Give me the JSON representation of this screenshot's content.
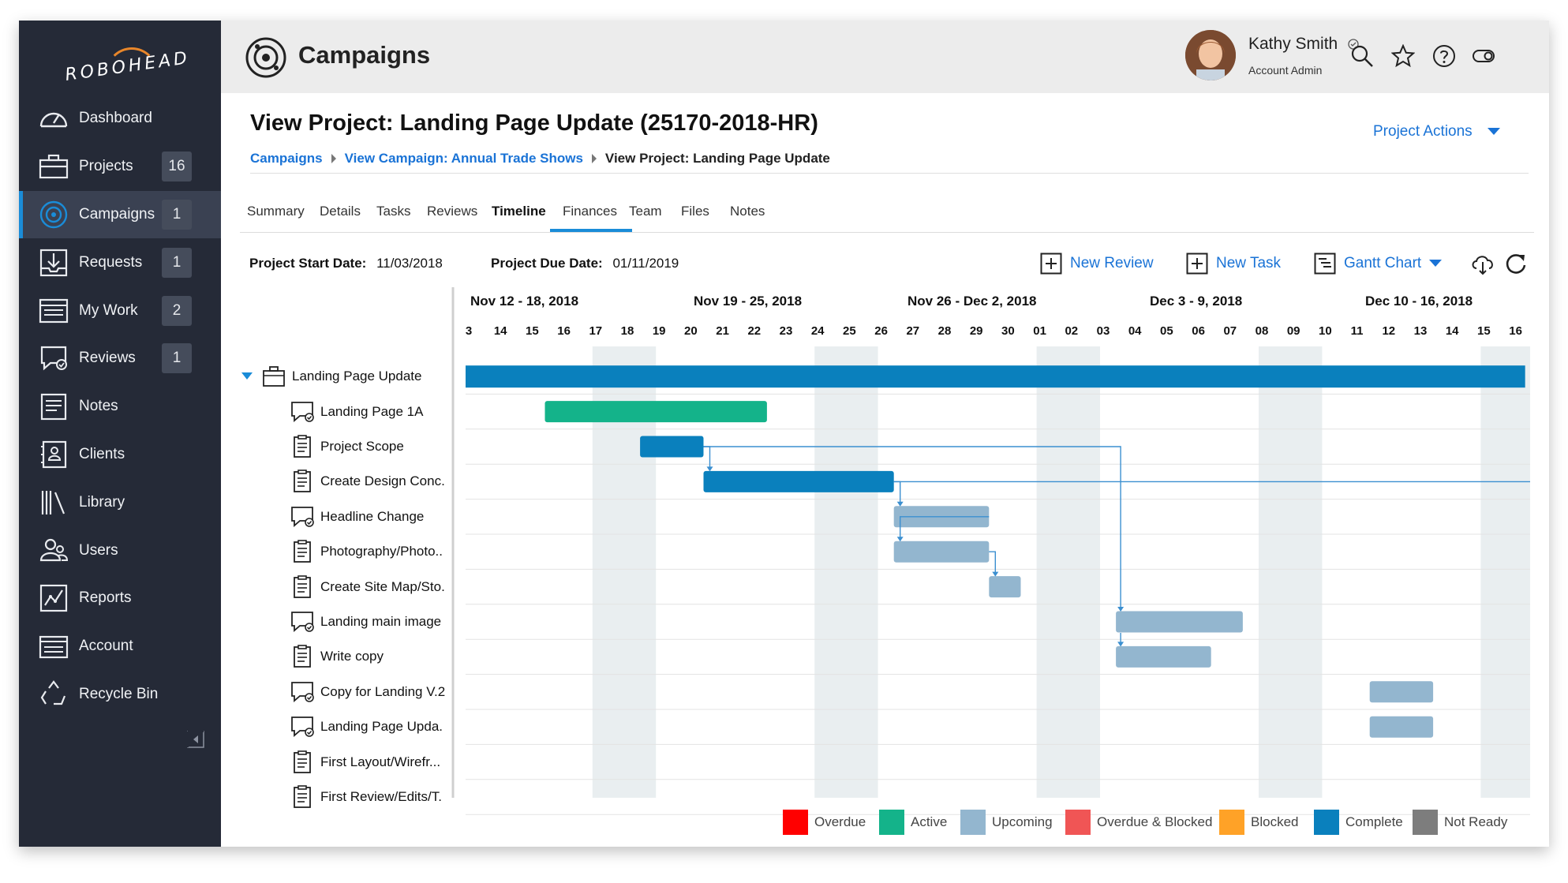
{
  "sidebar": {
    "logo": "ROBOHEAD",
    "items": [
      {
        "label": "Dashboard",
        "icon": "speedometer-icon",
        "badge": ""
      },
      {
        "label": "Projects",
        "icon": "briefcase-icon",
        "badge": "16"
      },
      {
        "label": "Campaigns",
        "icon": "target-icon",
        "badge": "1",
        "active": true
      },
      {
        "label": "Requests",
        "icon": "inbox-download-icon",
        "badge": "1"
      },
      {
        "label": "My Work",
        "icon": "keyboard-icon",
        "badge": "2"
      },
      {
        "label": "Reviews",
        "icon": "chat-check-icon",
        "badge": "1"
      },
      {
        "label": "Notes",
        "icon": "notepad-icon",
        "badge": ""
      },
      {
        "label": "Clients",
        "icon": "contact-card-icon",
        "badge": ""
      },
      {
        "label": "Library",
        "icon": "books-icon",
        "badge": ""
      },
      {
        "label": "Users",
        "icon": "users-icon",
        "badge": ""
      },
      {
        "label": "Reports",
        "icon": "chart-line-icon",
        "badge": ""
      },
      {
        "label": "Account",
        "icon": "account-card-icon",
        "badge": ""
      },
      {
        "label": "Recycle Bin",
        "icon": "recycle-icon",
        "badge": ""
      }
    ]
  },
  "header": {
    "title": "Campaigns",
    "user_name": "Kathy Smith",
    "user_role": "Account Admin"
  },
  "page": {
    "title": "View Project: Landing Page Update (25170-2018-HR)",
    "project_actions": "Project Actions",
    "breadcrumb": [
      "Campaigns",
      "View Campaign: Annual Trade Shows",
      "View Project: Landing Page Update"
    ],
    "tabs": [
      "Summary",
      "Details",
      "Tasks",
      "Reviews",
      "Timeline",
      "Finances",
      "Team",
      "Files",
      "Notes"
    ],
    "active_tab": "Timeline",
    "start_date_label": "Project Start Date:",
    "start_date": "11/03/2018",
    "due_date_label": "Project Due Date:",
    "due_date": "01/11/2019",
    "toolbar": {
      "new_review": "New Review",
      "new_task": "New Task",
      "view_mode": "Gantt Chart"
    }
  },
  "gantt": {
    "weeks": [
      "Nov 12 - 18, 2018",
      "Nov 19 - 25, 2018",
      "Nov 26 - Dec 2, 2018",
      "Dec 3 - 9, 2018",
      "Dec 10 - 16, 2018"
    ],
    "days": [
      "3",
      "14",
      "15",
      "16",
      "17",
      "18",
      "19",
      "20",
      "21",
      "22",
      "23",
      "24",
      "25",
      "26",
      "27",
      "28",
      "29",
      "30",
      "01",
      "02",
      "03",
      "04",
      "05",
      "06",
      "07",
      "08",
      "09",
      "10",
      "11",
      "12",
      "13",
      "14",
      "15",
      "16"
    ],
    "weekend_day_indices": [
      [
        4,
        5
      ],
      [
        11,
        12
      ],
      [
        18,
        19
      ],
      [
        25,
        26
      ],
      [
        32,
        33
      ]
    ],
    "rows": [
      {
        "label": "Landing Page Update",
        "type": "project",
        "start": 0,
        "end": 33.4,
        "status": "complete"
      },
      {
        "label": "Landing Page 1A",
        "type": "review",
        "start": 2.5,
        "end": 9.5,
        "status": "active"
      },
      {
        "label": "Project Scope",
        "type": "task",
        "start": 5.5,
        "end": 7.5,
        "status": "complete"
      },
      {
        "label": "Create Design Conc.",
        "type": "task",
        "start": 7.5,
        "end": 13.5,
        "status": "complete"
      },
      {
        "label": "Headline Change",
        "type": "review",
        "start": 13.5,
        "end": 16.5,
        "status": "upcoming"
      },
      {
        "label": "Photography/Photo..",
        "type": "task",
        "start": 13.5,
        "end": 16.5,
        "status": "upcoming"
      },
      {
        "label": "Create Site Map/Sto.",
        "type": "task",
        "start": 16.5,
        "end": 17.5,
        "status": "upcoming"
      },
      {
        "label": "Landing main image",
        "type": "review",
        "start": 20.5,
        "end": 24.5,
        "status": "upcoming"
      },
      {
        "label": "Write copy",
        "type": "task",
        "start": 20.5,
        "end": 23.5,
        "status": "upcoming"
      },
      {
        "label": "Copy for Landing V.2",
        "type": "review",
        "start": 28.5,
        "end": 30.5,
        "status": "upcoming"
      },
      {
        "label": "Landing Page Upda.",
        "type": "review",
        "start": 28.5,
        "end": 30.5,
        "status": "upcoming"
      },
      {
        "label": "First Layout/Wirefr...",
        "type": "task",
        "start": null,
        "end": null,
        "status": ""
      },
      {
        "label": "First Review/Edits/T.",
        "type": "task",
        "start": null,
        "end": null,
        "status": ""
      }
    ]
  },
  "legend": [
    {
      "label": "Overdue",
      "color": "#ff0000"
    },
    {
      "label": "Active",
      "color": "#14b38a"
    },
    {
      "label": "Upcoming",
      "color": "#93b6cf"
    },
    {
      "label": "Overdue & Blocked",
      "color": "#f05555"
    },
    {
      "label": "Blocked",
      "color": "#ffa227"
    },
    {
      "label": "Complete",
      "color": "#0a80bd"
    },
    {
      "label": "Not Ready",
      "color": "#7d7d7d"
    }
  ],
  "colors": {
    "complete": "#0a80bd",
    "active": "#14b38a",
    "upcoming": "#93b6cf",
    "accent": "#1a73d6",
    "sidebar": "#252a37"
  }
}
